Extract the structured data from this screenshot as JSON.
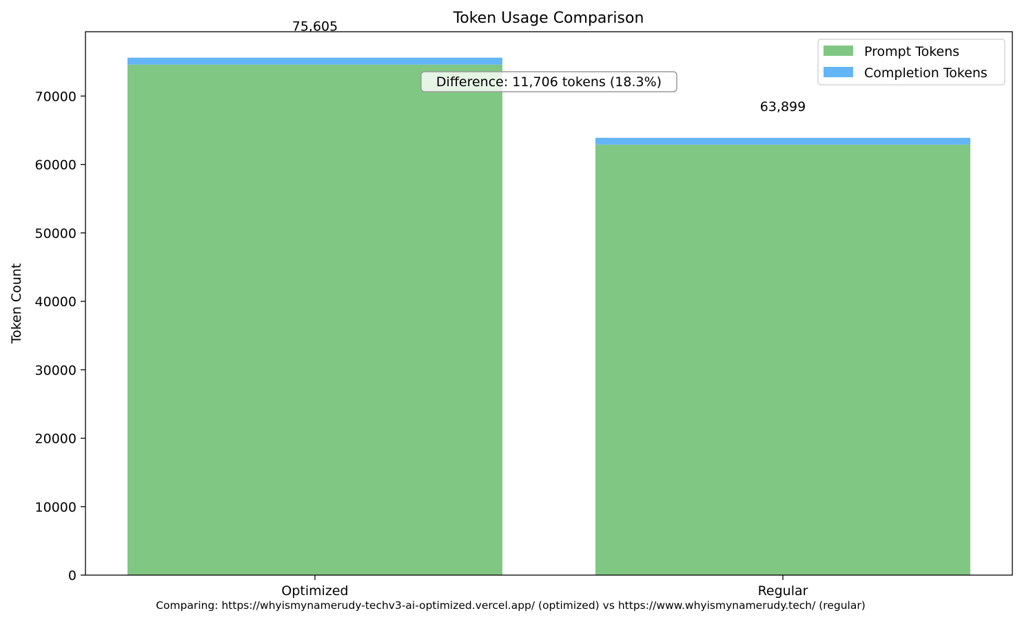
{
  "chart_data": {
    "type": "bar",
    "stacked": true,
    "title": "Token Usage Comparison",
    "xlabel": "",
    "ylabel": "Token Count",
    "categories": [
      "Optimized",
      "Regular"
    ],
    "series": [
      {
        "name": "Prompt Tokens",
        "values": [
          74600,
          62900
        ],
        "color": "#81c784"
      },
      {
        "name": "Completion Tokens",
        "values": [
          1005,
          999
        ],
        "color": "#64b5f6"
      }
    ],
    "totals": [
      75605,
      63899
    ],
    "total_labels": [
      "75,605",
      "63,899"
    ],
    "ylim": [
      0,
      79400
    ],
    "yticks": [
      0,
      10000,
      20000,
      30000,
      40000,
      50000,
      60000,
      70000
    ],
    "ytick_labels": [
      "0",
      "10000",
      "20000",
      "30000",
      "40000",
      "50000",
      "60000",
      "70000"
    ],
    "legend_position": "top-right",
    "grid": false,
    "annotation": "Difference: 11,706 tokens (18.3%)",
    "footnote": "Comparing: https://whyismynamerudy-techv3-ai-optimized.vercel.app/ (optimized) vs https://www.whyismynamerudy.tech/ (regular)"
  }
}
